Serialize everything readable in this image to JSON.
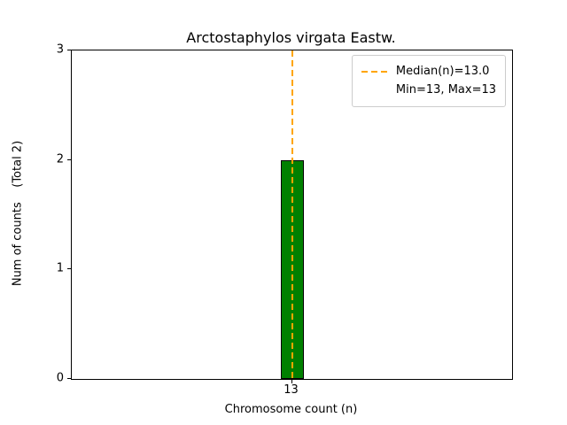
{
  "chart_data": {
    "type": "bar",
    "title": "Arctostaphylos virgata Eastw.",
    "xlabel": "Chromosome count (n)",
    "ylabel": "Num of counts    (Total 2)",
    "categories": [
      "13"
    ],
    "values": [
      2
    ],
    "total_counts": 2,
    "ylim": [
      0,
      3
    ],
    "yticks": [
      "0",
      "1",
      "2",
      "3"
    ],
    "bar_color": "#008000",
    "bar_edge_color": "#000000",
    "median_line": {
      "x_category": "13",
      "value": 13.0,
      "color": "#FFA500",
      "style": "dashed"
    },
    "legend": {
      "position": "upper right",
      "entries": [
        {
          "label": "Median(n)=13.0",
          "marker": "dashed-line",
          "color": "#FFA500"
        },
        {
          "label": "Min=13, Max=13",
          "marker": "none"
        }
      ]
    },
    "grid": false
  }
}
